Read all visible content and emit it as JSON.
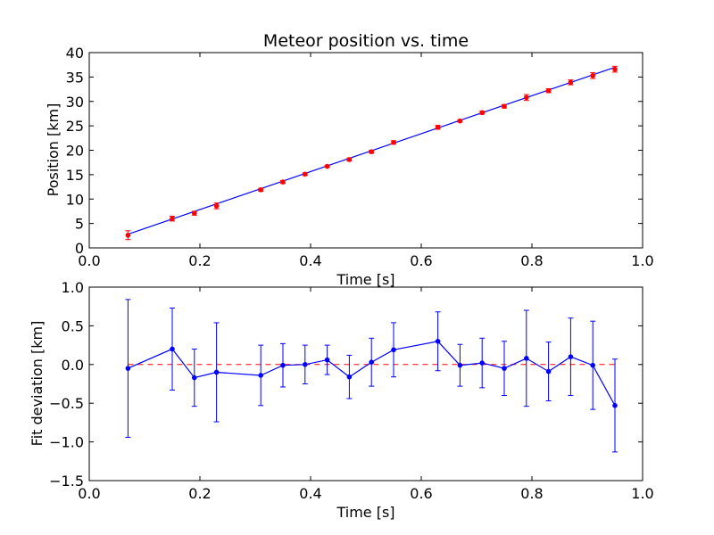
{
  "chart_data": [
    {
      "type": "line",
      "title": "Meteor position vs. time",
      "xlabel": "Time [s]",
      "ylabel": "Position [km]",
      "xlim": [
        0.0,
        1.0
      ],
      "ylim": [
        0,
        40
      ],
      "xticks": [
        "0.0",
        "0.2",
        "0.4",
        "0.6",
        "0.8",
        "1.0"
      ],
      "yticks": [
        "0",
        "5",
        "10",
        "15",
        "20",
        "25",
        "30",
        "35",
        "40"
      ],
      "grid": false,
      "fit_line": {
        "color": "#0000ff",
        "x": [
          0.07,
          0.95
        ],
        "y": [
          2.8,
          37.0
        ]
      },
      "measurements": {
        "color": "#ff0000",
        "x": [
          0.07,
          0.15,
          0.19,
          0.23,
          0.31,
          0.35,
          0.39,
          0.43,
          0.47,
          0.51,
          0.55,
          0.63,
          0.67,
          0.71,
          0.75,
          0.79,
          0.83,
          0.87,
          0.91,
          0.95
        ],
        "y": [
          2.6,
          6.0,
          7.1,
          8.6,
          11.9,
          13.5,
          15.1,
          16.7,
          18.1,
          19.7,
          21.6,
          24.7,
          26.0,
          27.7,
          29.0,
          30.8,
          32.2,
          33.9,
          35.3,
          36.6
        ],
        "err": [
          0.9,
          0.5,
          0.4,
          0.6,
          0.3,
          0.3,
          0.25,
          0.2,
          0.3,
          0.3,
          0.35,
          0.4,
          0.25,
          0.3,
          0.35,
          0.6,
          0.4,
          0.5,
          0.6,
          0.6
        ]
      }
    },
    {
      "type": "line",
      "title": "",
      "xlabel": "Time [s]",
      "ylabel": "Fit deviation [km]",
      "xlim": [
        0.0,
        1.0
      ],
      "ylim": [
        -1.5,
        1.0
      ],
      "xticks": [
        "0.0",
        "0.2",
        "0.4",
        "0.6",
        "0.8",
        "1.0"
      ],
      "yticks": [
        "−1.5",
        "−1.0",
        "−0.5",
        "0.0",
        "0.5",
        "1.0"
      ],
      "ytick_values": [
        -1.5,
        -1.0,
        -0.5,
        0.0,
        0.5,
        1.0
      ],
      "grid": false,
      "zero_line": {
        "color": "#ff0000",
        "style": "dashed",
        "x": [
          0.07,
          0.95
        ],
        "y": 0.0
      },
      "series": [
        {
          "color": "#0000ff",
          "x": [
            0.07,
            0.15,
            0.19,
            0.23,
            0.31,
            0.35,
            0.39,
            0.43,
            0.47,
            0.51,
            0.55,
            0.63,
            0.67,
            0.71,
            0.75,
            0.79,
            0.83,
            0.87,
            0.91,
            0.95
          ],
          "y": [
            -0.05,
            0.2,
            -0.17,
            -0.1,
            -0.14,
            -0.01,
            0.0,
            0.06,
            -0.16,
            0.03,
            0.19,
            0.3,
            -0.01,
            0.02,
            -0.05,
            0.08,
            -0.09,
            0.1,
            -0.01,
            -0.53
          ],
          "err": [
            0.89,
            0.53,
            0.37,
            0.64,
            0.39,
            0.28,
            0.25,
            0.19,
            0.28,
            0.31,
            0.35,
            0.38,
            0.27,
            0.32,
            0.35,
            0.62,
            0.38,
            0.5,
            0.57,
            0.6
          ]
        }
      ]
    }
  ]
}
